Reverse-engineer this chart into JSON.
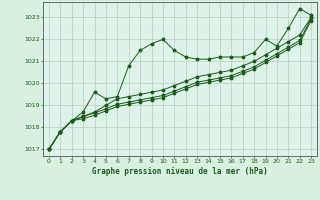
{
  "title": "Graphe pression niveau de la mer (hPa)",
  "bg_color": "#d8f0e0",
  "plot_bg_color": "#ddf2e8",
  "grid_color": "#bbccbb",
  "line_color": "#1a5c1a",
  "xlim": [
    -0.5,
    23.5
  ],
  "ylim": [
    1016.7,
    1023.7
  ],
  "yticks": [
    1017,
    1018,
    1019,
    1020,
    1021,
    1022,
    1023
  ],
  "xticks": [
    0,
    1,
    2,
    3,
    4,
    5,
    6,
    7,
    8,
    9,
    10,
    11,
    12,
    13,
    14,
    15,
    16,
    17,
    18,
    19,
    20,
    21,
    22,
    23
  ],
  "series": [
    [
      1017.0,
      1017.8,
      1018.3,
      1018.7,
      1019.6,
      1019.3,
      1019.4,
      1020.8,
      1021.5,
      1021.8,
      1022.0,
      1021.5,
      1021.2,
      1021.1,
      1021.1,
      1021.2,
      1021.2,
      1021.2,
      1021.4,
      1022.0,
      1021.7,
      1022.5,
      1023.4,
      1023.1
    ],
    [
      1017.0,
      1017.8,
      1018.3,
      1018.5,
      1018.7,
      1019.0,
      1019.3,
      1019.4,
      1019.5,
      1019.6,
      1019.7,
      1019.9,
      1020.1,
      1020.3,
      1020.4,
      1020.5,
      1020.6,
      1020.8,
      1021.0,
      1021.3,
      1021.6,
      1021.9,
      1022.2,
      1023.0
    ],
    [
      1017.0,
      1017.8,
      1018.3,
      1018.5,
      1018.65,
      1018.85,
      1019.05,
      1019.15,
      1019.25,
      1019.35,
      1019.45,
      1019.65,
      1019.85,
      1020.05,
      1020.15,
      1020.25,
      1020.35,
      1020.55,
      1020.75,
      1021.05,
      1021.35,
      1021.65,
      1021.95,
      1022.95
    ],
    [
      1017.0,
      1017.8,
      1018.3,
      1018.4,
      1018.55,
      1018.75,
      1018.95,
      1019.05,
      1019.15,
      1019.25,
      1019.35,
      1019.55,
      1019.75,
      1019.95,
      1020.05,
      1020.15,
      1020.25,
      1020.45,
      1020.65,
      1020.95,
      1021.25,
      1021.55,
      1021.85,
      1022.85
    ]
  ]
}
